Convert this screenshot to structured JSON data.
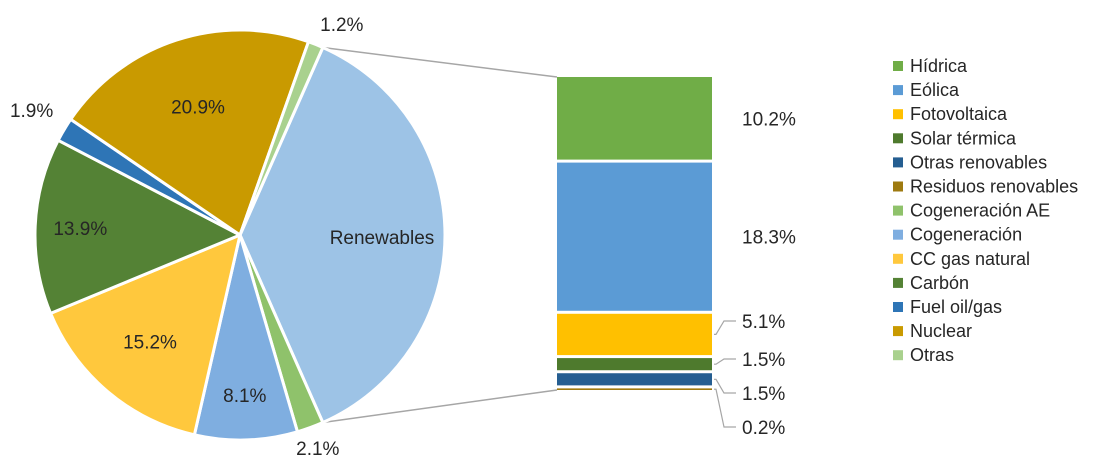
{
  "chart_data": {
    "type": "pie",
    "title": "",
    "pie": {
      "center_label": "Renewables",
      "slices": [
        {
          "name": "Renewables",
          "value": 36.8,
          "label": "",
          "color": "#9DC3E6"
        },
        {
          "name": "Cogeneración AE",
          "value": 2.1,
          "label": "2.1%",
          "color": "#8FC26B"
        },
        {
          "name": "Cogeneración",
          "value": 8.1,
          "label": "8.1%",
          "color": "#7FAEE0"
        },
        {
          "name": "CC gas natural",
          "value": 15.2,
          "label": "15.2%",
          "color": "#FFC83D"
        },
        {
          "name": "Carbón",
          "value": 13.9,
          "label": "13.9%",
          "color": "#548235"
        },
        {
          "name": "Fuel oil/gas",
          "value": 1.9,
          "label": "1.9%",
          "color": "#2E75B6"
        },
        {
          "name": "Nuclear",
          "value": 20.9,
          "label": "20.9%",
          "color": "#C99A00"
        },
        {
          "name": "Otras",
          "value": 1.2,
          "label": "1.2%",
          "color": "#A9D18E"
        }
      ]
    },
    "stack": {
      "segments": [
        {
          "name": "Hídrica",
          "value": 10.2,
          "label": "10.2%",
          "color": "#70AD47"
        },
        {
          "name": "Eólica",
          "value": 18.3,
          "label": "18.3%",
          "color": "#5B9BD5"
        },
        {
          "name": "Fotovoltaica",
          "value": 5.1,
          "label": "5.1%",
          "color": "#FFC000"
        },
        {
          "name": "Solar térmica",
          "value": 1.5,
          "label": "1.5%",
          "color": "#4E7A2D"
        },
        {
          "name": "Otras renovables",
          "value": 1.5,
          "label": "1.5%",
          "color": "#255E91"
        },
        {
          "name": "Residuos renovables",
          "value": 0.2,
          "label": "0.2%",
          "color": "#9E7A10"
        }
      ]
    },
    "legend": {
      "placement": "right",
      "items": [
        {
          "label": "Hídrica",
          "color": "#70AD47"
        },
        {
          "label": "Eólica",
          "color": "#5B9BD5"
        },
        {
          "label": "Fotovoltaica",
          "color": "#FFC000"
        },
        {
          "label": "Solar térmica",
          "color": "#4E7A2D"
        },
        {
          "label": "Otras renovables",
          "color": "#255E91"
        },
        {
          "label": "Residuos renovables",
          "color": "#9E7A10"
        },
        {
          "label": "Cogeneración AE",
          "color": "#8FC26B"
        },
        {
          "label": "Cogeneración",
          "color": "#7FAEE0"
        },
        {
          "label": "CC gas natural",
          "color": "#FFC83D"
        },
        {
          "label": "Carbón",
          "color": "#548235"
        },
        {
          "label": "Fuel oil/gas",
          "color": "#2E75B6"
        },
        {
          "label": "Nuclear",
          "color": "#C99A00"
        },
        {
          "label": "Otras",
          "color": "#A9D18E"
        }
      ]
    }
  }
}
